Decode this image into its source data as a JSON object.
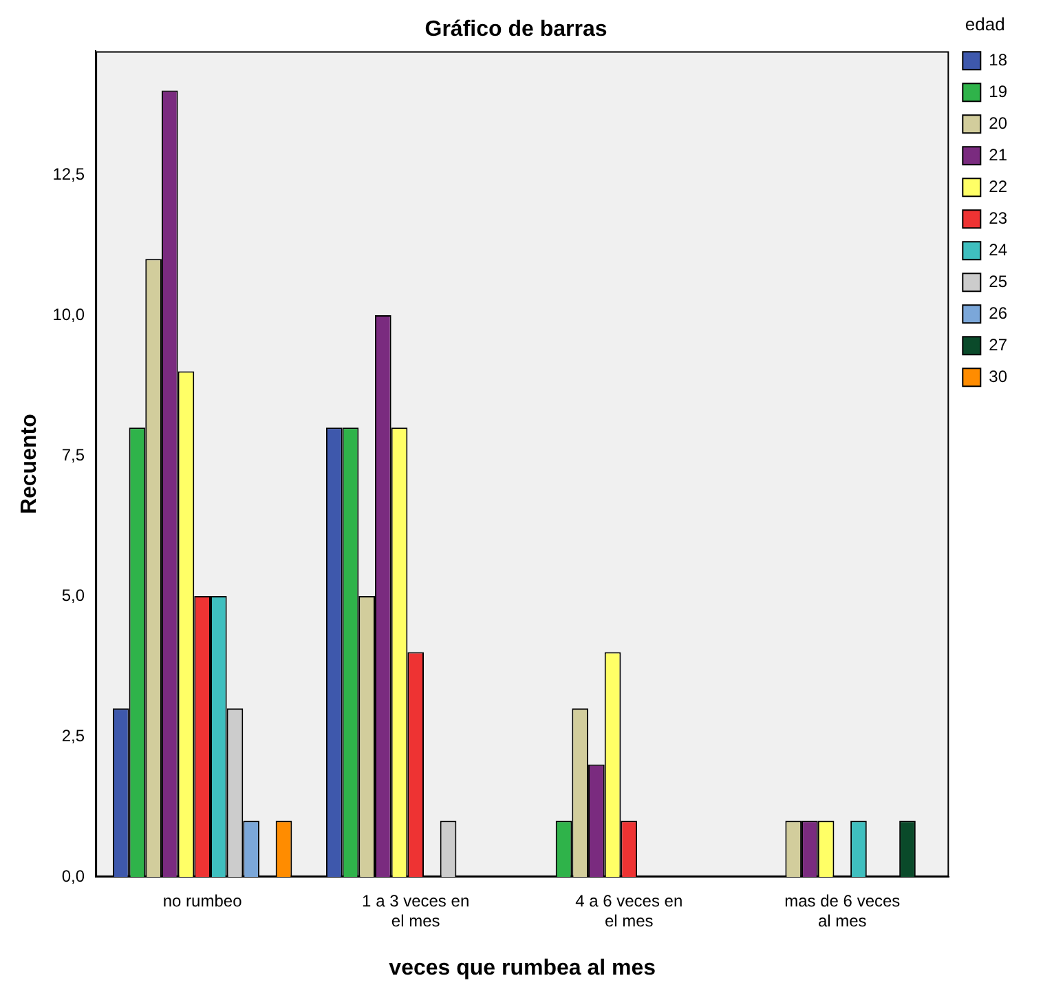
{
  "chart_data": {
    "type": "bar",
    "title": "Gráfico de barras",
    "xlabel": "veces que rumbea al mes",
    "ylabel": "Recuento",
    "legend_title": "edad",
    "legend": "right",
    "grid": false,
    "categories": [
      "no rumbeo",
      "1 a 3 veces en el mes",
      "4 a 6 veces en el mes",
      "mas de 6 veces al mes"
    ],
    "ylim": [
      0,
      14.7
    ],
    "yticks": [
      {
        "value": 0,
        "label": "0,0"
      },
      {
        "value": 2.5,
        "label": "2,5"
      },
      {
        "value": 5,
        "label": "5,0"
      },
      {
        "value": 7.5,
        "label": "7,5"
      },
      {
        "value": 10,
        "label": "10,0"
      },
      {
        "value": 12.5,
        "label": "12,5"
      }
    ],
    "series": [
      {
        "name": "18",
        "color": "#3e58ac",
        "values": [
          3,
          8,
          null,
          null
        ]
      },
      {
        "name": "19",
        "color": "#2fb34a",
        "values": [
          8,
          8,
          1,
          null
        ]
      },
      {
        "name": "20",
        "color": "#d2cd9c",
        "values": [
          11,
          5,
          3,
          1
        ]
      },
      {
        "name": "21",
        "color": "#7a2b7f",
        "values": [
          14,
          10,
          2,
          1
        ]
      },
      {
        "name": "22",
        "color": "#ffff66",
        "values": [
          9,
          8,
          4,
          1
        ]
      },
      {
        "name": "23",
        "color": "#ee3333",
        "values": [
          5,
          4,
          1,
          null
        ]
      },
      {
        "name": "24",
        "color": "#3fbfbf",
        "values": [
          5,
          null,
          null,
          1
        ]
      },
      {
        "name": "25",
        "color": "#cccccc",
        "values": [
          3,
          1,
          null,
          null
        ]
      },
      {
        "name": "26",
        "color": "#7ba7d9",
        "values": [
          1,
          null,
          null,
          null
        ]
      },
      {
        "name": "27",
        "color": "#0a4a2a",
        "values": [
          null,
          null,
          null,
          1
        ]
      },
      {
        "name": "30",
        "color": "#ff8c00",
        "values": [
          1,
          null,
          null,
          null
        ]
      }
    ]
  }
}
